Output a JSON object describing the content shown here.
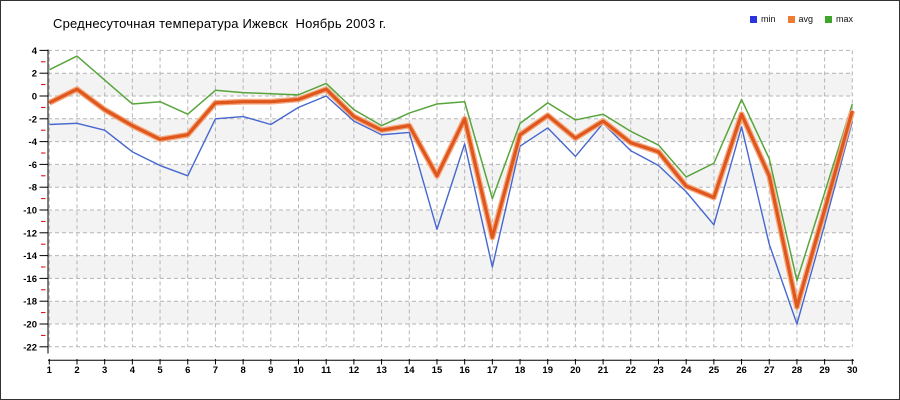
{
  "title": "Среднесуточная температура Ижевск  Ноябрь 2003 г.",
  "legend": [
    {
      "label": "min",
      "color": "#2c35dd"
    },
    {
      "label": "avg",
      "color": "#ef7a31"
    },
    {
      "label": "max",
      "color": "#3ea62b"
    }
  ],
  "chart_data": {
    "type": "line",
    "title": "Среднесуточная температура Ижевск  Ноябрь 2003 г.",
    "xlabel": "",
    "ylabel": "",
    "categories": [
      1,
      2,
      3,
      4,
      5,
      6,
      7,
      8,
      9,
      10,
      11,
      12,
      13,
      14,
      15,
      16,
      17,
      18,
      19,
      20,
      21,
      22,
      23,
      24,
      25,
      26,
      27,
      28,
      29,
      30
    ],
    "series": [
      {
        "name": "min",
        "color": "#4667cf",
        "values": [
          -2.5,
          -2.4,
          -3.0,
          -4.9,
          -6.1,
          -7.0,
          -2.0,
          -1.8,
          -2.5,
          -1.0,
          0.0,
          -2.2,
          -3.4,
          -3.2,
          -11.7,
          -4.2,
          -15.0,
          -4.4,
          -2.8,
          -5.3,
          -2.4,
          -4.8,
          -6.1,
          -8.4,
          -11.3,
          -2.7,
          -13.0,
          -20.0,
          -11.3,
          -2.2
        ]
      },
      {
        "name": "avg",
        "color": "#e0571e",
        "halo_color": "#f4a97e",
        "values": [
          -0.6,
          0.6,
          -1.2,
          -2.6,
          -3.8,
          -3.4,
          -0.6,
          -0.5,
          -0.5,
          -0.3,
          0.6,
          -1.8,
          -3.0,
          -2.6,
          -7.0,
          -2.0,
          -12.4,
          -3.4,
          -1.7,
          -3.7,
          -2.2,
          -4.1,
          -4.9,
          -7.9,
          -8.9,
          -1.6,
          -7.0,
          -18.5,
          -10.0,
          -1.3
        ]
      },
      {
        "name": "max",
        "color": "#58a53c",
        "values": [
          2.3,
          3.5,
          1.4,
          -0.7,
          -0.5,
          -1.6,
          0.5,
          0.3,
          0.2,
          0.1,
          1.1,
          -1.2,
          -2.6,
          -1.5,
          -0.7,
          -0.5,
          -9.0,
          -2.4,
          -0.6,
          -2.1,
          -1.6,
          -3.1,
          -4.3,
          -7.1,
          -5.9,
          -0.3,
          -5.5,
          -16.2,
          -8.5,
          -0.7
        ]
      }
    ],
    "ylim": [
      -22,
      4
    ],
    "y_ticks": [
      4,
      2,
      0,
      -2,
      -4,
      -6,
      -8,
      -10,
      -12,
      -14,
      -16,
      -18,
      -20,
      -22
    ],
    "y_minor_ticks": [
      3,
      1,
      -1,
      -3,
      -5,
      -7,
      -9,
      -11,
      -13,
      -15,
      -17,
      -19,
      -21
    ],
    "grid": "dashed",
    "legend_position": "top-right",
    "colors": {
      "grid": "#b5b5b5",
      "band": "#f3f3f3",
      "axis": "#000000",
      "minor_tick": "#dd0000",
      "tick_label": "#000000"
    }
  }
}
